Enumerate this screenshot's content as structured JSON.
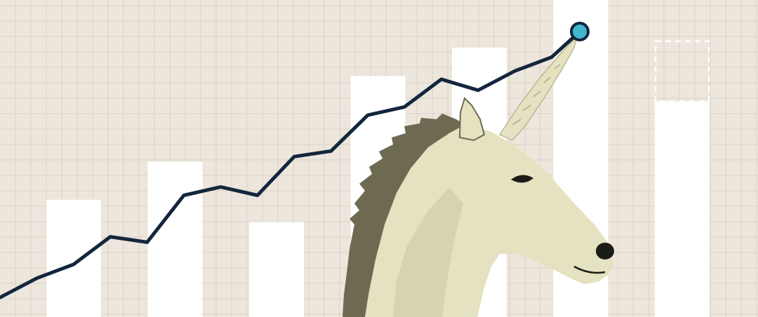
{
  "colors": {
    "background": "#ece6dc",
    "grid": "#d9d2c6",
    "bar": "#ffffff",
    "bar_projected_outline": "#ffffff",
    "line": "#13263d",
    "endpoint_fill": "#3fb7cf",
    "unicorn_body": "#e4e2c0",
    "unicorn_shadow": "#b9b796",
    "unicorn_mane": "#6e6a52",
    "unicorn_nostril": "#1c1c16"
  },
  "icons": {
    "unicorn": "unicorn-illustration",
    "endpoint": "endpoint-dot-icon"
  },
  "chart_data": {
    "type": "bar",
    "bars": [
      {
        "value": 0.37
      },
      {
        "value": 0.49
      },
      {
        "value": 0.3
      },
      {
        "value": 0.76
      },
      {
        "value": 0.85
      },
      {
        "value": 1.0
      },
      {
        "value": 0.68,
        "projected_value": 0.87
      }
    ],
    "line": {
      "type": "line",
      "values": [
        0.04,
        0.11,
        0.16,
        0.26,
        0.24,
        0.41,
        0.44,
        0.41,
        0.55,
        0.57,
        0.7,
        0.73,
        0.83,
        0.79,
        0.86,
        0.91
      ]
    },
    "ylim": [
      0,
      1
    ]
  }
}
